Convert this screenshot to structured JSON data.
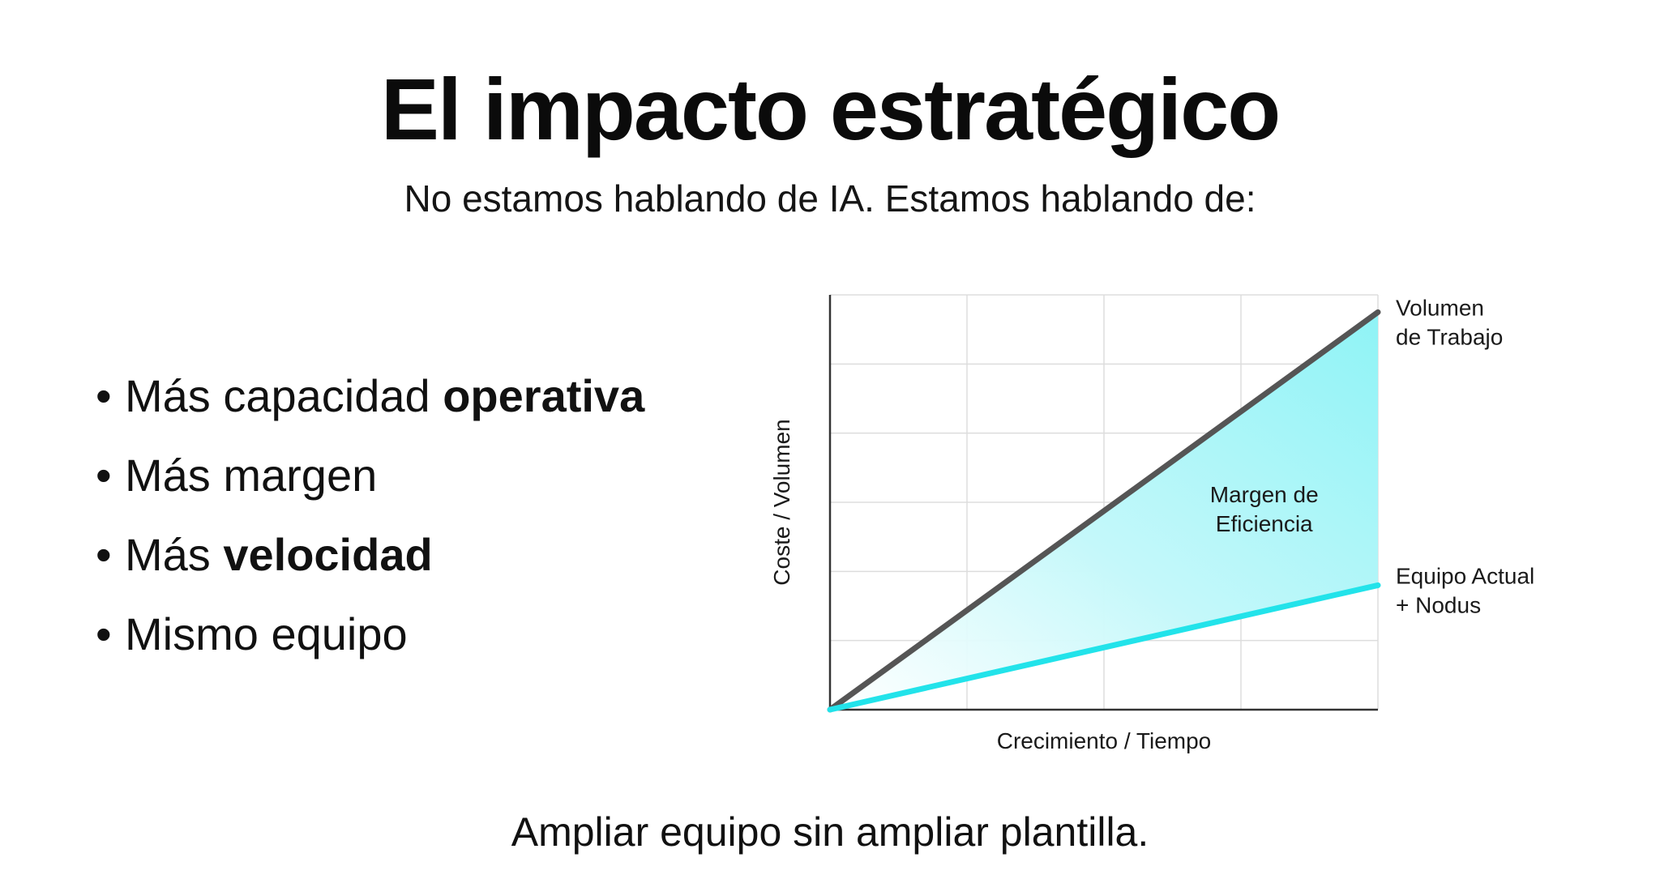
{
  "title": "El impacto estratégico",
  "subtitle": "No estamos hablando de IA. Estamos hablando de:",
  "bullets": [
    {
      "prefix": "Más capacidad ",
      "bold": "operativa",
      "suffix": ""
    },
    {
      "prefix": "Más margen",
      "bold": "",
      "suffix": ""
    },
    {
      "prefix": "Más ",
      "bold": "velocidad",
      "suffix": ""
    },
    {
      "prefix": "Mismo equipo",
      "bold": "",
      "suffix": ""
    }
  ],
  "footer": "Ampliar equipo sin ampliar plantilla.",
  "chart_data": {
    "type": "line",
    "xlabel": "Crecimiento / Tiempo",
    "ylabel": "Coste / Volumen",
    "xlim": [
      0,
      4
    ],
    "ylim": [
      0,
      6
    ],
    "grid": true,
    "series": [
      {
        "name_lines": [
          "Volumen",
          "de Trabajo"
        ],
        "color": "#555555",
        "x": [
          0,
          4
        ],
        "y": [
          0,
          5.75
        ]
      },
      {
        "name_lines": [
          "Equipo Actual",
          "+ Nodus"
        ],
        "color": "#22e3ea",
        "x": [
          0,
          4
        ],
        "y": [
          0,
          1.8
        ]
      }
    ],
    "area_label_lines": [
      "Margen de",
      "Eficiencia"
    ],
    "area_label_pos": [
      3.17,
      3.0
    ],
    "fill_color": "#8ff3f6"
  }
}
